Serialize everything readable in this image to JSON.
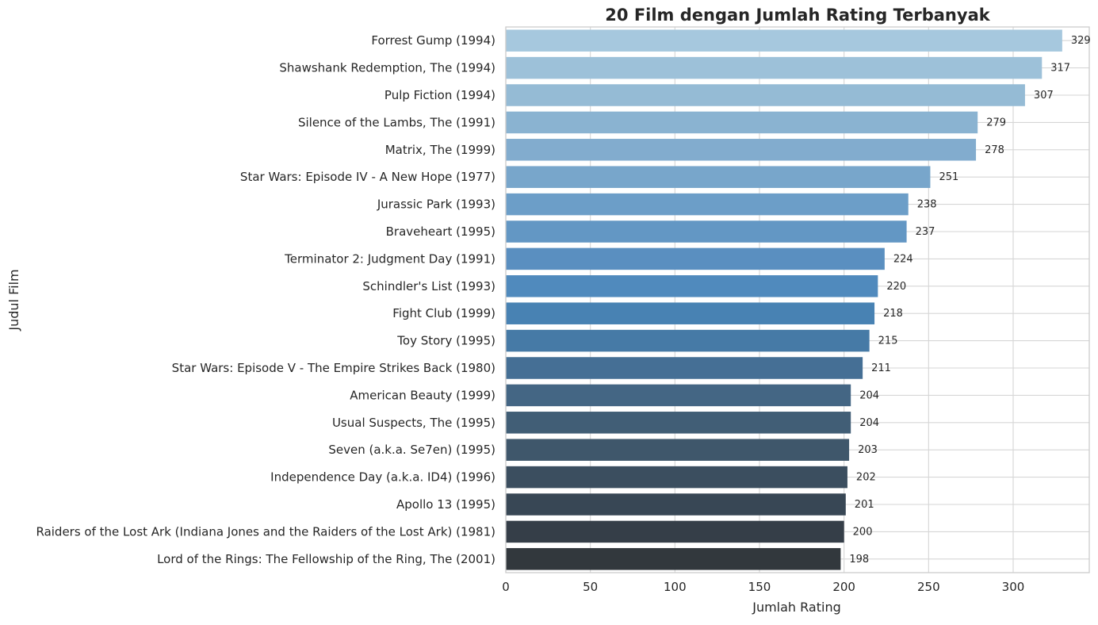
{
  "chart_data": {
    "type": "bar",
    "orientation": "horizontal",
    "title": "20 Film dengan Jumlah Rating Terbanyak",
    "xlabel": "Jumlah Rating",
    "ylabel": "Judul Film",
    "xlim": [
      0,
      345
    ],
    "xticks": [
      0,
      50,
      100,
      150,
      200,
      250,
      300
    ],
    "grid": true,
    "categories": [
      "Forrest Gump (1994)",
      "Shawshank Redemption, The (1994)",
      "Pulp Fiction (1994)",
      "Silence of the Lambs, The (1991)",
      "Matrix, The (1999)",
      "Star Wars: Episode IV - A New Hope (1977)",
      "Jurassic Park (1993)",
      "Braveheart (1995)",
      "Terminator 2: Judgment Day (1991)",
      "Schindler's List (1993)",
      "Fight Club (1999)",
      "Toy Story (1995)",
      "Star Wars: Episode V - The Empire Strikes Back (1980)",
      "American Beauty (1999)",
      "Usual Suspects, The (1995)",
      "Seven (a.k.a. Se7en) (1995)",
      "Independence Day (a.k.a. ID4) (1996)",
      "Apollo 13 (1995)",
      "Raiders of the Lost Ark (Indiana Jones and the Raiders of the Lost Ark) (1981)",
      "Lord of the Rings: The Fellowship of the Ring, The (2001)"
    ],
    "values": [
      329,
      317,
      307,
      279,
      278,
      251,
      238,
      237,
      224,
      220,
      218,
      215,
      211,
      204,
      204,
      203,
      202,
      201,
      200,
      198
    ],
    "colors": [
      "#a6c8de",
      "#9dc1d9",
      "#95bbd5",
      "#8ab3d1",
      "#82acce",
      "#78a6cb",
      "#6c9ec8",
      "#6397c4",
      "#5a8fc0",
      "#508abd",
      "#4882b3",
      "#467aa6",
      "#456f95",
      "#446684",
      "#415e76",
      "#3f576b",
      "#3b4e5f",
      "#384755",
      "#353e48",
      "#32383d"
    ]
  }
}
